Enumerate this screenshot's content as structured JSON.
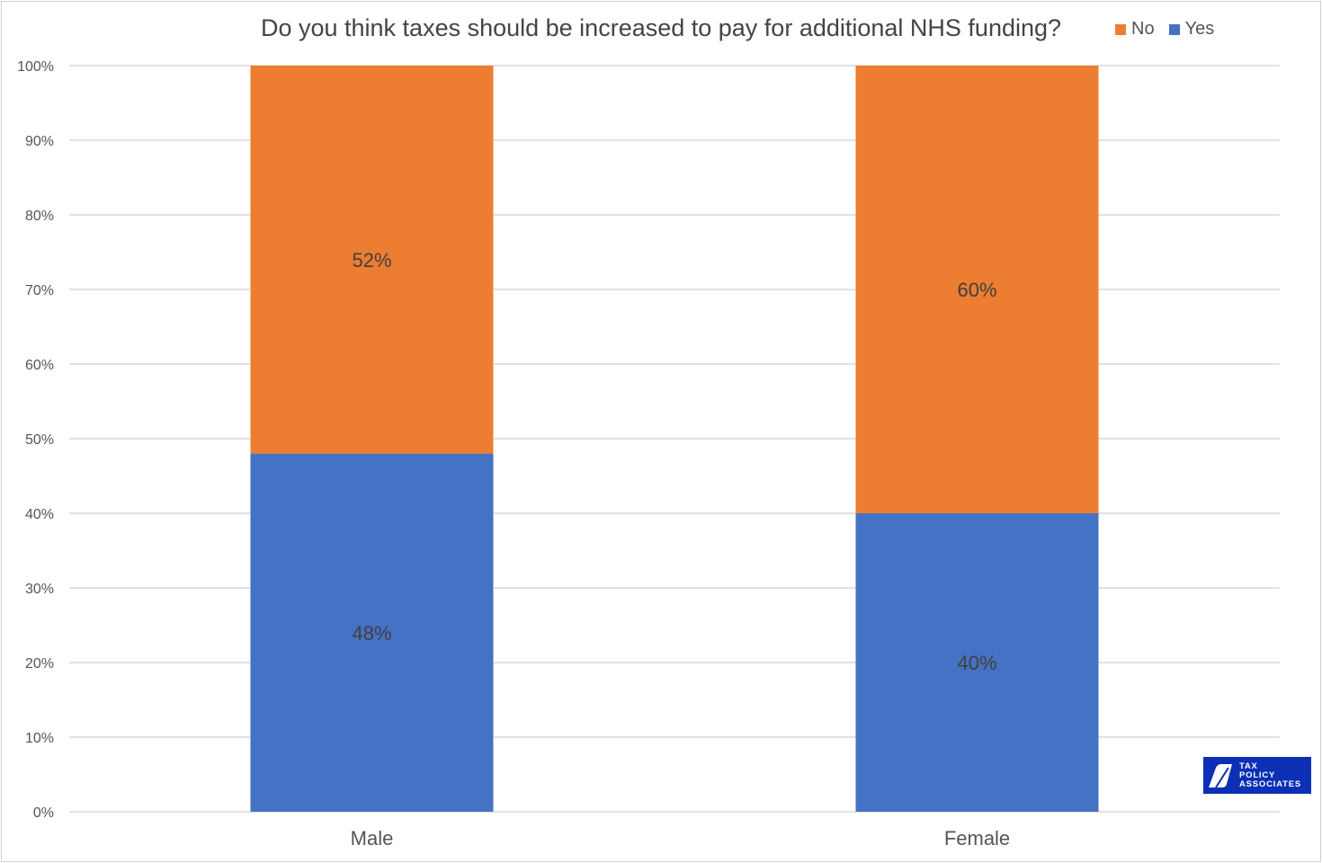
{
  "chart_data": {
    "type": "bar",
    "stacked": true,
    "title": "Do you think taxes should be increased to pay for additional NHS funding?",
    "categories": [
      "Male",
      "Female"
    ],
    "series": [
      {
        "name": "Yes",
        "values": [
          48,
          40
        ],
        "labels": [
          "48%",
          "40%"
        ],
        "color": "#4472c4"
      },
      {
        "name": "No",
        "values": [
          52,
          60
        ],
        "labels": [
          "52%",
          "60%"
        ],
        "color": "#ed7d31"
      }
    ],
    "legend": [
      {
        "name": "No",
        "color": "#ed7d31"
      },
      {
        "name": "Yes",
        "color": "#4472c4"
      }
    ],
    "legend_position": "top-right",
    "ylim": [
      0,
      100
    ],
    "yticks": [
      "0%",
      "10%",
      "20%",
      "30%",
      "40%",
      "50%",
      "60%",
      "70%",
      "80%",
      "90%",
      "100%"
    ],
    "grid": true,
    "xlabel": "",
    "ylabel": ""
  },
  "logo": {
    "text": "TAX POLICY ASSOCIATES"
  }
}
